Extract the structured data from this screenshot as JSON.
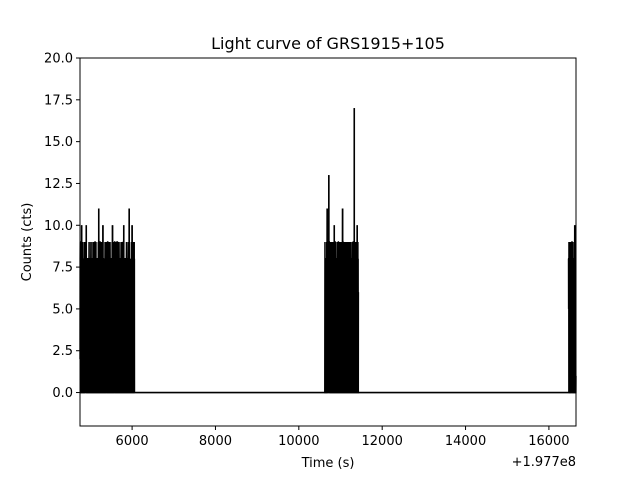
{
  "chart_data": {
    "type": "line",
    "title": "Light curve of GRS1915+105",
    "xlabel": "Time (s)",
    "ylabel": "Counts (cts)",
    "x_offset_label": "+1.977e8",
    "xlim": [
      4750,
      16650
    ],
    "ylim": [
      -2.0,
      20.0
    ],
    "xticks": [
      6000,
      8000,
      10000,
      12000,
      14000,
      16000
    ],
    "yticks": [
      0.0,
      2.5,
      5.0,
      7.5,
      10.0,
      12.5,
      15.0,
      17.5,
      20.0
    ],
    "xtick_labels": [
      "6000",
      "8000",
      "10000",
      "12000",
      "14000",
      "16000"
    ],
    "ytick_labels": [
      "0.0",
      "2.5",
      "5.0",
      "7.5",
      "10.0",
      "12.5",
      "15.0",
      "17.5",
      "20.0"
    ],
    "grid": false,
    "line_color": "#000000",
    "baseline_value": 0,
    "series": [
      {
        "segments": [
          {
            "x_start": 4750,
            "x_end": 6060,
            "peaks": [
              {
                "x": 4790,
                "y": 10
              },
              {
                "x": 4900,
                "y": 10
              },
              {
                "x": 5200,
                "y": 11
              },
              {
                "x": 5300,
                "y": 10
              },
              {
                "x": 5450,
                "y": 9
              },
              {
                "x": 5530,
                "y": 10
              },
              {
                "x": 5800,
                "y": 10
              },
              {
                "x": 5930,
                "y": 11
              },
              {
                "x": 6000,
                "y": 10
              }
            ]
          },
          {
            "x_start": 10620,
            "x_end": 11430,
            "peaks": [
              {
                "x": 10680,
                "y": 11
              },
              {
                "x": 10720,
                "y": 13
              },
              {
                "x": 10850,
                "y": 10
              },
              {
                "x": 11050,
                "y": 11
              },
              {
                "x": 11330,
                "y": 17
              },
              {
                "x": 11400,
                "y": 10
              }
            ]
          },
          {
            "x_start": 16470,
            "x_end": 16650,
            "peaks": [
              {
                "x": 16500,
                "y": 9
              },
              {
                "x": 16620,
                "y": 10
              }
            ]
          }
        ]
      }
    ]
  }
}
